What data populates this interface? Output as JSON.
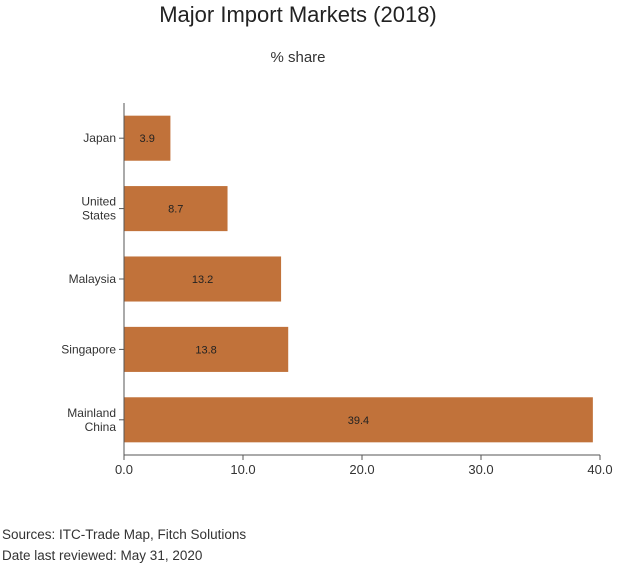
{
  "chart_data": {
    "type": "bar",
    "orientation": "horizontal",
    "title": "Major Import Markets (2018)",
    "subtitle": "% share",
    "categories": [
      [
        "Japan"
      ],
      [
        "United",
        "States"
      ],
      [
        "Malaysia"
      ],
      [
        "Singapore"
      ],
      [
        "Mainland",
        "China"
      ]
    ],
    "values": [
      3.9,
      8.7,
      13.2,
      13.8,
      39.4
    ],
    "xlim": [
      0,
      40
    ],
    "xticks": [
      "0.0",
      "10.0",
      "20.0",
      "30.0",
      "40.0"
    ],
    "bar_color": "#c1723a",
    "grid": false
  },
  "footer": {
    "sources": "Sources: ITC-Trade Map, Fitch Solutions",
    "reviewed": "Date last reviewed: May 31, 2020"
  }
}
